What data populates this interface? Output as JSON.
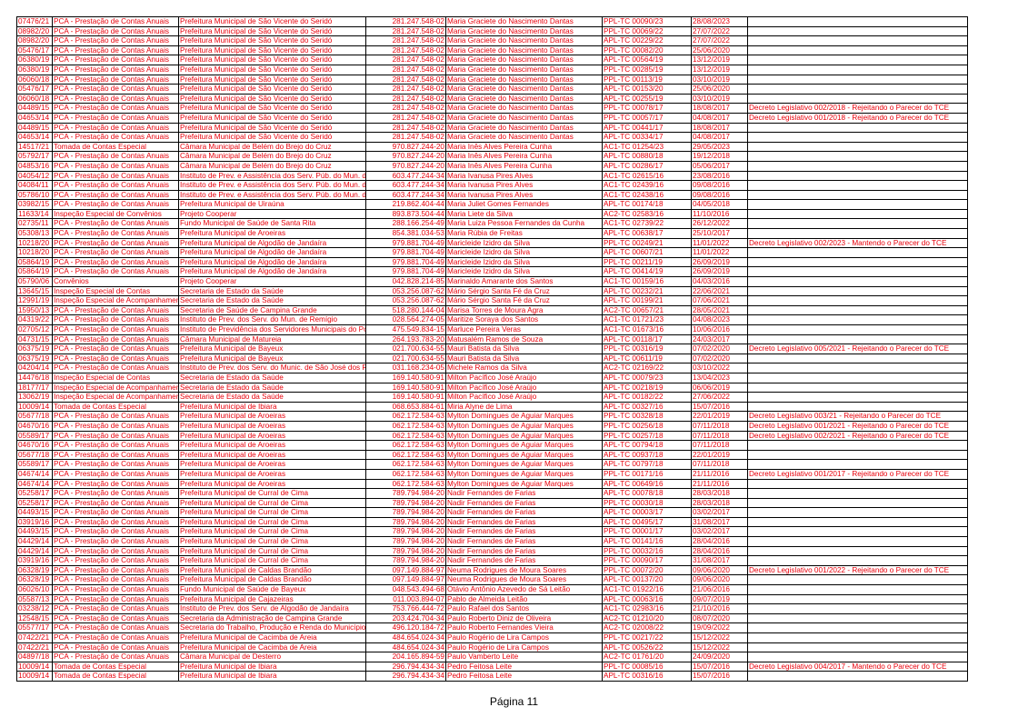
{
  "table": {
    "rows": [
      [
        "07476/21",
        "PCA - Prestação de Contas Anuais",
        "Prefeitura Municipal de São Vicente do Seridó",
        "281.247.548-02",
        "Maria Graciete do Nascimento Dantas",
        "PPL-TC 00090/23",
        "28/08/2023"
      ],
      [
        "08982/20",
        "PCA - Prestação de Contas Anuais",
        "Prefeitura Municipal de São Vicente do Seridó",
        "281.247.548-02",
        "Maria Graciete do Nascimento Dantas",
        "PPL-TC 00069/22",
        "27/07/2022"
      ],
      [
        "08982/20",
        "PCA - Prestação de Contas Anuais",
        "Prefeitura Municipal de São Vicente do Seridó",
        "281.247.548-02",
        "Maria Graciete do Nascimento Dantas",
        "APL-TC 00229/22",
        "27/07/2022"
      ],
      [
        "05476/17",
        "PCA - Prestação de Contas Anuais",
        "Prefeitura Municipal de São Vicente do Seridó",
        "281.247.548-02",
        "Maria Graciete do Nascimento Dantas",
        "PPL-TC 00082/20",
        "25/06/2020"
      ],
      [
        "06380/19",
        "PCA - Prestação de Contas Anuais",
        "Prefeitura Municipal de São Vicente do Seridó",
        "281.247.548-02",
        "Maria Graciete do Nascimento Dantas",
        "APL-TC 00564/19",
        "13/12/2019"
      ],
      [
        "06380/19",
        "PCA - Prestação de Contas Anuais",
        "Prefeitura Municipal de São Vicente do Seridó",
        "281.247.548-02",
        "Maria Graciete do Nascimento Dantas",
        "PPL-TC 00285/19",
        "13/12/2019"
      ],
      [
        "06060/18",
        "PCA - Prestação de Contas Anuais",
        "Prefeitura Municipal de São Vicente do Seridó",
        "281.247.548-02",
        "Maria Graciete do Nascimento Dantas",
        "PPL-TC 00113/19",
        "03/10/2019"
      ],
      [
        "05476/17",
        "PCA - Prestação de Contas Anuais",
        "Prefeitura Municipal de São Vicente do Seridó",
        "281.247.548-02",
        "Maria Graciete do Nascimento Dantas",
        "APL-TC 00153/20",
        "25/06/2020"
      ],
      [
        "06060/18",
        "PCA - Prestação de Contas Anuais",
        "Prefeitura Municipal de São Vicente do Seridó",
        "281.247.548-02",
        "Maria Graciete do Nascimento Dantas",
        "APL-TC 00255/19",
        "03/10/2019"
      ],
      [
        "04489/15",
        "PCA - Prestação de Contas Anuais",
        "Prefeitura Municipal de São Vicente do Seridó",
        "281.247.548-02",
        "Maria Graciete do Nascimento Dantas",
        "PPL-TC 00078/17",
        "18/08/2017",
        "Decreto Legislativo 002/2018 - Rejeitando o Parecer do TCE"
      ],
      [
        "04653/14",
        "PCA - Prestação de Contas Anuais",
        "Prefeitura Municipal de São Vicente do Seridó",
        "281.247.548-02",
        "Maria Graciete do Nascimento Dantas",
        "PPL-TC 00057/17",
        "04/08/2017",
        "Decreto Legislativo 001/2018 - Rejeitando o Parecer do TCE"
      ],
      [
        "04489/15",
        "PCA - Prestação de Contas Anuais",
        "Prefeitura Municipal de São Vicente do Seridó",
        "281.247.548-02",
        "Maria Graciete do Nascimento Dantas",
        "APL-TC 00441/17",
        "18/08/2017"
      ],
      [
        "04653/14",
        "PCA - Prestação de Contas Anuais",
        "Prefeitura Municipal de São Vicente do Seridó",
        "281.247.548-02",
        "Maria Graciete do Nascimento Dantas",
        "APL-TC 00334/17",
        "04/08/2017"
      ],
      [
        "14517/21",
        "Tomada de Contas Especial",
        "Câmara Municipal de Belém do Brejo do Cruz",
        "970.827.244-20",
        "Maria Inês Alves Pereira Cunha",
        "AC1-TC 01254/23",
        "29/05/2023"
      ],
      [
        "05792/17",
        "PCA - Prestação de Contas Anuais",
        "Câmara Municipal de Belém do Brejo do Cruz",
        "970.827.244-20",
        "Maria Inês Alves Pereira Cunha",
        "APL-TC 00880/18",
        "19/12/2018"
      ],
      [
        "04853/16",
        "PCA - Prestação de Contas Anuais",
        "Câmara Municipal de Belém do Brejo do Cruz",
        "970.827.244-20",
        "Maria Inês Alves Pereira Cunha",
        "APL-TC 00286/17",
        "05/06/2017"
      ],
      [
        "04054/12",
        "PCA - Prestação de Contas Anuais",
        "Instituto de Prev. e Assistência dos Serv. Púb. do Mun. d",
        "603.477.244-34",
        "Maria Ivanusa Pires Alves",
        "AC1-TC 02615/16",
        "23/08/2016"
      ],
      [
        "04084/11",
        "PCA - Prestação de Contas Anuais",
        "Instituto de Prev. e Assistência dos Serv. Púb. do Mun. d",
        "603.477.244-34",
        "Maria Ivanusa Pires Alves",
        "AC1-TC 02439/16",
        "09/08/2016"
      ],
      [
        "05786/10",
        "PCA - Prestação de Contas Anuais",
        "Instituto de Prev. e Assistência dos Serv. Púb. do Mun. d",
        "603.477.244-34",
        "Maria Ivanusa Pires Alves",
        "AC1-TC 02438/16",
        "09/08/2016"
      ],
      [
        "03982/15",
        "PCA - Prestação de Contas Anuais",
        "Prefeitura Municipal de Uiraúna",
        "219.862.404-44",
        "Maria Juliet Gomes Fernandes",
        "APL-TC 00174/18",
        "04/05/2018"
      ],
      [
        "11633/14",
        "Inspeção Especial de Convênios",
        "Projeto Cooperar",
        "893.873.504-44",
        "Maria Liete da Silva",
        "AC2-TC 02583/16",
        "11/10/2016"
      ],
      [
        "02735/11",
        "PCA - Prestação de Contas Anuais",
        "Fundo Municipal de Saúde de Santa Rita",
        "288.166.254-49",
        "Maria Luiza Pessoa Fernandes da Cunha",
        "AC1-TC 02739/22",
        "26/12/2022"
      ],
      [
        "05308/13",
        "PCA - Prestação de Contas Anuais",
        "Prefeitura Municipal de Aroeiras",
        "854.381.034-53",
        "Maria Rúbia de Freitas",
        "APL-TC 00638/17",
        "25/10/2017"
      ],
      [
        "10218/20",
        "PCA - Prestação de Contas Anuais",
        "Prefeitura Municipal de Algodão de Jandaíra",
        "979.881.704-49",
        "Maricleide Izidro da Silva",
        "PPL-TC 00249/21",
        "11/01/2022",
        "Decreto Legislativo 002/2023 - Mantendo o Parecer do TCE"
      ],
      [
        "10218/20",
        "PCA - Prestação de Contas Anuais",
        "Prefeitura Municipal de Algodão de Jandaíra",
        "979.881.704-49",
        "Maricleide Izidro da Silva",
        "APL-TC 00607/21",
        "11/01/2022"
      ],
      [
        "05864/19",
        "PCA - Prestação de Contas Anuais",
        "Prefeitura Municipal de Algodão de Jandaíra",
        "979.881.704-49",
        "Maricleide Izidro da Silva",
        "PPL-TC 00211/19",
        "26/09/2019"
      ],
      [
        "05864/19",
        "PCA - Prestação de Contas Anuais",
        "Prefeitura Municipal de Algodão de Jandaíra",
        "979.881.704-49",
        "Maricleide Izidro da Silva",
        "APL-TC 00414/19",
        "26/09/2019"
      ],
      [
        "05790/06",
        "Convênios",
        "Projeto Cooperar",
        "042.828.214-85",
        "Marinaldo Amarante dos Santos",
        "AC1-TC 00159/16",
        "04/03/2016"
      ],
      [
        "13645/15",
        "Inspeção Especial de Contas",
        "Secretaria de Estado da Saúde",
        "053.256.087-62",
        "Mário Sérgio Santa Fé da Cruz",
        "APL-TC 00232/21",
        "22/06/2021"
      ],
      [
        "12991/19",
        "Inspeção Especial de Acompanhamen",
        "Secretaria de Estado da Saúde",
        "053.256.087-62",
        "Mário Sérgio Santa Fé da Cruz",
        "APL-TC 00199/21",
        "07/06/2021"
      ],
      [
        "15950/13",
        "PCA - Prestação de Contas Anuais",
        "Secretaria de Saúde de Campina Grande",
        "518.280.144-04",
        "Marisa Torres de Moura Agra",
        "AC2-TC 00657/21",
        "28/05/2021"
      ],
      [
        "04319/22",
        "PCA - Prestação de Contas Anuais",
        "Instituto de Prev. dos Serv. do Mun. de Remígio",
        "028.564.274-05",
        "Maritize Soraya dos Santos",
        "AC1-TC 01721/23",
        "04/08/2023"
      ],
      [
        "02705/12",
        "PCA - Prestação de Contas Anuais",
        "Instituto de Previdência dos Servidores Municipais do Po",
        "475.549.834-15",
        "Marluce Pereira Veras",
        "AC1-TC 01673/16",
        "10/06/2016"
      ],
      [
        "04731/15",
        "PCA - Prestação de Contas Anuais",
        "Câmara Municipal de Matureia",
        "264.193.783-20",
        "Matusalém Ramos de Souza",
        "APL-TC 00118/17",
        "24/03/2017"
      ],
      [
        "06375/19",
        "PCA - Prestação de Contas Anuais",
        "Prefeitura Municipal de Bayeux",
        "021.700.634-55",
        "Mauri Batista da Silva",
        "PPL-TC 00316/19",
        "07/02/2020",
        "Decreto Legislativo 005/2021 - Rejeitando o Parecer do TCE"
      ],
      [
        "06375/19",
        "PCA - Prestação de Contas Anuais",
        "Prefeitura Municipal de Bayeux",
        "021.700.634-55",
        "Mauri Batista da Silva",
        "APL-TC 00611/19",
        "07/02/2020"
      ],
      [
        "04204/14",
        "PCA - Prestação de Contas Anuais",
        "Instituto de Prev. dos Serv. do Munic. de São José dos R",
        "031.168.234-05",
        "Michele Ramos da Silva",
        "AC2-TC 02169/22",
        "03/10/2022"
      ],
      [
        "14476/18",
        "Inspeção Especial de Contas",
        "Secretaria de Estado da Saúde",
        "169.140.580-91",
        "Milton Pacífico José Araújo",
        "APL-TC 00079/23",
        "13/04/2023"
      ],
      [
        "18177/17",
        "Inspeção Especial de Acompanhamen",
        "Secretaria de Estado da Saúde",
        "169.140.580-91",
        "Milton Pacífico José Araújo",
        "APL-TC 00218/19",
        "06/06/2019"
      ],
      [
        "13062/19",
        "Inspeção Especial de Acompanhamen",
        "Secretaria de Estado da Saúde",
        "169.140.580-91",
        "Milton Pacífico José Araújo",
        "APL-TC 00182/22",
        "27/06/2022"
      ],
      [
        "10009/14",
        "Tomada de Contas Especial",
        "Prefeitura Municipal de Ibiara",
        "068.653.884-61",
        "Miria Alyne de Lima",
        "APL-TC 00327/16",
        "15/07/2016"
      ],
      [
        "05677/18",
        "PCA - Prestação de Contas Anuais",
        "Prefeitura Municipal de Aroeiras",
        "062.172.584-63",
        "Mylton Domingues de Aguiar Marques",
        "PPL-TC 00328/18",
        "22/01/2019",
        "Decreto Legislativo 003/21 - Rejeitando o Parecer do TCE"
      ],
      [
        "04670/16",
        "PCA - Prestação de Contas Anuais",
        "Prefeitura Municipal de Aroeiras",
        "062.172.584-63",
        "Mylton Domingues de Aguiar Marques",
        "PPL-TC 00256/18",
        "07/11/2018",
        "Decreto Legislativo 001/2021 - Rejeitando o Parecer do TCE"
      ],
      [
        "05589/17",
        "PCA - Prestação de Contas Anuais",
        "Prefeitura Municipal de Aroeiras",
        "062.172.584-63",
        "Mylton Domingues de Aguiar Marques",
        "PPL-TC 00257/18",
        "07/11/2018",
        "Decreto Legislativo 002/2021 - Rejeitando o Parecer do TCE"
      ],
      [
        "04670/16",
        "PCA - Prestação de Contas Anuais",
        "Prefeitura Municipal de Aroeiras",
        "062.172.584-63",
        "Mylton Domingues de Aguiar Marques",
        "APL-TC 00794/18",
        "07/11/2018"
      ],
      [
        "05677/18",
        "PCA - Prestação de Contas Anuais",
        "Prefeitura Municipal de Aroeiras",
        "062.172.584-63",
        "Mylton Domingues de Aguiar Marques",
        "APL-TC 00937/18",
        "22/01/2019"
      ],
      [
        "05589/17",
        "PCA - Prestação de Contas Anuais",
        "Prefeitura Municipal de Aroeiras",
        "062.172.584-63",
        "Mylton Domingues de Aguiar Marques",
        "APL-TC 00797/18",
        "07/11/2018"
      ],
      [
        "04674/14",
        "PCA - Prestação de Contas Anuais",
        "Prefeitura Municipal de Aroeiras",
        "062.172.584-63",
        "Mylton Domingues de Aguiar Marques",
        "PPL-TC 00171/16",
        "21/11/2016",
        "Decreto Legislativo 001/2017 - Rejeitando o Parecer do TCE"
      ],
      [
        "04674/14",
        "PCA - Prestação de Contas Anuais",
        "Prefeitura Municipal de Aroeiras",
        "062.172.584-63",
        "Mylton Domingues de Aguiar Marques",
        "APL-TC 00649/16",
        "21/11/2016"
      ],
      [
        "05258/17",
        "PCA - Prestação de Contas Anuais",
        "Prefeitura Municipal de Curral de Cima",
        "789.794.984-20",
        "Nadir Fernandes de Farias",
        "APL-TC 00078/18",
        "28/03/2018"
      ],
      [
        "05258/17",
        "PCA - Prestação de Contas Anuais",
        "Prefeitura Municipal de Curral de Cima",
        "789.794.984-20",
        "Nadir Fernandes de Farias",
        "PPL-TC 00030/18",
        "28/03/2018"
      ],
      [
        "04493/15",
        "PCA - Prestação de Contas Anuais",
        "Prefeitura Municipal de Curral de Cima",
        "789.794.984-20",
        "Nadir Fernandes de Farias",
        "APL-TC 00003/17",
        "03/02/2017"
      ],
      [
        "03919/16",
        "PCA - Prestação de Contas Anuais",
        "Prefeitura Municipal de Curral de Cima",
        "789.794.984-20",
        "Nadir Fernandes de Farias",
        "APL-TC 00495/17",
        "31/08/2017"
      ],
      [
        "04493/15",
        "PCA - Prestação de Contas Anuais",
        "Prefeitura Municipal de Curral de Cima",
        "789.794.984-20",
        "Nadir Fernandes de Farias",
        "PPL-TC 00001/17",
        "03/02/2017"
      ],
      [
        "04429/14",
        "PCA - Prestação de Contas Anuais",
        "Prefeitura Municipal de Curral de Cima",
        "789.794.984-20",
        "Nadir Fernandes de Farias",
        "APL-TC 00141/16",
        "28/04/2016"
      ],
      [
        "04429/14",
        "PCA - Prestação de Contas Anuais",
        "Prefeitura Municipal de Curral de Cima",
        "789.794.984-20",
        "Nadir Fernandes de Farias",
        "PPL-TC 00032/16",
        "28/04/2016"
      ],
      [
        "03919/16",
        "PCA - Prestação de Contas Anuais",
        "Prefeitura Municipal de Curral de Cima",
        "789.794.984-20",
        "Nadir Fernandes de Farias",
        "PPL-TC 00090/17",
        "31/08/2017"
      ],
      [
        "06328/19",
        "PCA - Prestação de Contas Anuais",
        "Prefeitura Municipal de Caldas Brandão",
        "097.149.884-97",
        "Neuma Rodrigues de Moura Soares",
        "PPL-TC 00072/20",
        "09/06/2020",
        "Decreto Legislativo 001/2022 - Rejeitando o Parecer do TCE"
      ],
      [
        "06328/19",
        "PCA - Prestação de Contas Anuais",
        "Prefeitura Municipal de Caldas Brandão",
        "097.149.884-97",
        "Neuma Rodrigues de Moura Soares",
        "APL-TC 00137/20",
        "09/06/2020"
      ],
      [
        "06026/10",
        "PCA - Prestação de Contas Anuais",
        "Fundo Municipal de Saúde de Bayeux",
        "048.543.494-68",
        "Otávio Antônio Azevedo de Sá Leitão",
        "AC1-TC 01922/16",
        "21/06/2016"
      ],
      [
        "05587/13",
        "PCA - Prestação de Contas Anuais",
        "Prefeitura Municipal de Cajazeiras",
        "011.003.894-07",
        "Pablo de Almeida Leitão",
        "APL-TC 00063/16",
        "09/07/2019"
      ],
      [
        "03238/12",
        "PCA - Prestação de Contas Anuais",
        "Instituto de Prev. dos Serv. de Algodão de Jandaíra",
        "753.766.444-72",
        "Paulo Rafael dos Santos",
        "AC1-TC 02983/16",
        "21/10/2016"
      ],
      [
        "12548/15",
        "PCA - Prestação de Contas Anuais",
        "Secretaria da Administração de Campina Grande",
        "203.424.704-34",
        "Paulo Roberto Diniz de Oliveira",
        "AC2-TC 01210/20",
        "08/07/2020"
      ],
      [
        "05577/17",
        "PCA - Prestação de Contas Anuais",
        "Secretaria do Trabalho, Produção e Renda do Município",
        "496.120.184-72",
        "Paulo Roberto Fernandes Vieira",
        "AC2-TC 02008/22",
        "19/09/2022"
      ],
      [
        "07422/21",
        "PCA - Prestação de Contas Anuais",
        "Prefeitura Municipal de Cacimba de Areia",
        "484.654.024-34",
        "Paulo Rogério de Lira Campos",
        "PPL-TC 00217/22",
        "15/12/2022"
      ],
      [
        "07422/21",
        "PCA - Prestação de Contas Anuais",
        "Prefeitura Municipal de Cacimba de Areia",
        "484.654.024-34",
        "Paulo Rogério de Lira Campos",
        "APL-TC 00526/22",
        "15/12/2022"
      ],
      [
        "04897/18",
        "PCA - Prestação de Contas Anuais",
        "Câmara Municipal de Desterro",
        "204.165.894-59",
        "Paulo Vamberto Leite",
        "AC2-TC 01761/20",
        "24/09/2020"
      ],
      [
        "10009/14",
        "Tomada de Contas Especial",
        "Prefeitura Municipal de Ibiara",
        "296.794.434-34",
        "Pedro Feitosa Leite",
        "PPL-TC 00085/16",
        "15/07/2016",
        "Decreto Legislativo 004/2017 - Mantendo o Parecer do TCE"
      ],
      [
        "10009/14",
        "Tomada de Contas Especial",
        "Prefeitura Municipal de Ibiara",
        "296.794.434-34",
        "Pedro Feitosa Leite",
        "APL-TC 00316/16",
        "15/07/2016"
      ]
    ]
  },
  "footer": "Página 11"
}
